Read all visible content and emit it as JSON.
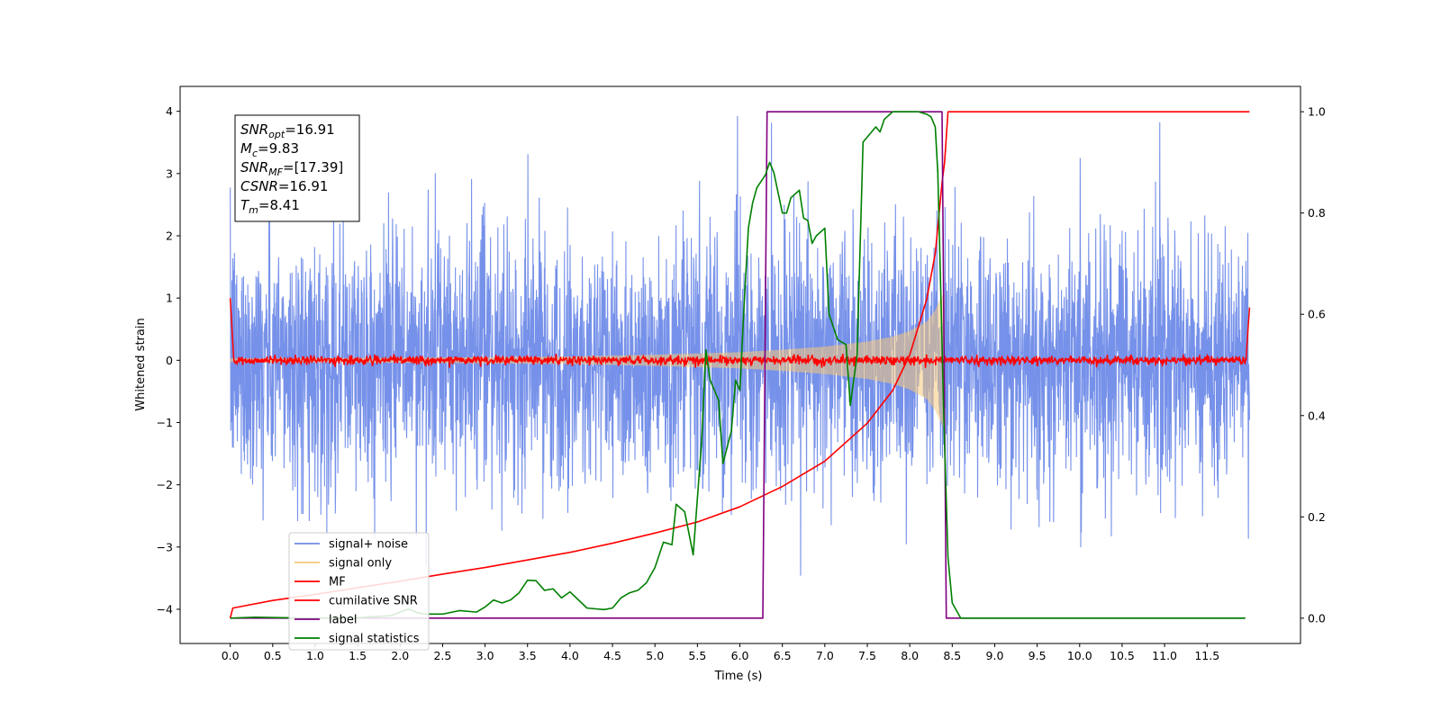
{
  "chart_data": {
    "type": "line",
    "xlabel": "Time (s)",
    "ylabel": "Whitened strain",
    "x_range": [
      0,
      12
    ],
    "xlim": [
      -0.59,
      12.6
    ],
    "ylim": [
      -4.55,
      4.4
    ],
    "y2lim": [
      -0.05,
      1.05
    ],
    "x_ticks": [
      "0.0",
      "0.5",
      "1.0",
      "1.5",
      "2.0",
      "2.5",
      "3.0",
      "3.5",
      "4.0",
      "4.5",
      "5.0",
      "5.5",
      "6.0",
      "6.5",
      "7.0",
      "7.5",
      "8.0",
      "8.5",
      "9.0",
      "9.5",
      "10.0",
      "10.5",
      "11.0",
      "11.5"
    ],
    "y_ticks": [
      "4",
      "3",
      "2",
      "1",
      "0",
      "−1",
      "−2",
      "−3",
      "−4"
    ],
    "y2_ticks": [
      "1.0",
      "0.8",
      "0.6",
      "0.4",
      "0.2",
      "0.0"
    ],
    "annotation": {
      "lines": [
        {
          "base": "SNR",
          "sub": "opt",
          "value": "=16.91"
        },
        {
          "base": "M",
          "sub": "c",
          "value": "=9.83"
        },
        {
          "base": "SNR",
          "sub": "MF",
          "value": "=[17.39]"
        },
        {
          "base": "CSNR",
          "sub": "",
          "value": "=16.91"
        },
        {
          "base": "T",
          "sub": "m",
          "value": "=8.41"
        }
      ]
    },
    "legend": {
      "position": "lower-left",
      "entries": [
        {
          "label": "signal+ noise",
          "color": "#6f8be8"
        },
        {
          "label": "signal only",
          "color": "#f5c87a"
        },
        {
          "label": "MF",
          "color": "#ff0000"
        },
        {
          "label": "cumilative SNR",
          "color": "#ff0000"
        },
        {
          "label": "label",
          "color": "#800080"
        },
        {
          "label": "signal statistics",
          "color": "#008000"
        }
      ]
    },
    "series": [
      {
        "name": "signal+ noise",
        "axis": "left",
        "kind": "noise",
        "sigma": 1.0,
        "x_range": [
          0,
          12
        ]
      },
      {
        "name": "signal only",
        "axis": "left",
        "kind": "chirp",
        "x_range": [
          0,
          8.41
        ],
        "envelope": {
          "x": [
            0,
            2,
            4,
            5,
            6,
            6.5,
            7,
            7.5,
            7.8,
            8.0,
            8.2,
            8.3,
            8.35,
            8.41
          ],
          "amp": [
            0.03,
            0.04,
            0.06,
            0.09,
            0.13,
            0.17,
            0.22,
            0.3,
            0.38,
            0.47,
            0.62,
            0.8,
            0.95,
            1.1
          ]
        }
      },
      {
        "name": "MF",
        "axis": "left",
        "kind": "mf",
        "x_range": [
          0,
          12
        ],
        "noise_sigma": 0.035
      },
      {
        "name": "cumilative SNR",
        "axis": "right",
        "x": [
          0,
          0.03,
          0.5,
          1,
          1.5,
          2,
          2.5,
          3,
          3.5,
          4,
          4.5,
          5,
          5.5,
          6,
          6.5,
          7,
          7.5,
          7.8,
          8.0,
          8.2,
          8.3,
          8.38,
          8.41,
          8.45,
          12.0
        ],
        "y": [
          0.0,
          0.02,
          0.035,
          0.047,
          0.06,
          0.073,
          0.087,
          0.1,
          0.115,
          0.13,
          0.148,
          0.168,
          0.19,
          0.22,
          0.26,
          0.31,
          0.385,
          0.45,
          0.52,
          0.63,
          0.72,
          0.86,
          0.9,
          1.0,
          1.0
        ]
      },
      {
        "name": "label",
        "axis": "right",
        "x": [
          0,
          6.27,
          6.32,
          8.38,
          8.43,
          11.95
        ],
        "y": [
          0,
          0,
          1,
          1,
          0,
          0
        ]
      },
      {
        "name": "signal statistics",
        "axis": "right",
        "x": [
          0.0,
          0.3,
          0.6,
          1.0,
          1.5,
          1.9,
          2.0,
          2.1,
          2.2,
          2.3,
          2.5,
          2.7,
          2.9,
          3.0,
          3.1,
          3.2,
          3.3,
          3.4,
          3.5,
          3.6,
          3.7,
          3.8,
          3.9,
          4.0,
          4.2,
          4.4,
          4.5,
          4.6,
          4.7,
          4.8,
          4.9,
          5.0,
          5.1,
          5.2,
          5.25,
          5.35,
          5.45,
          5.55,
          5.6,
          5.65,
          5.75,
          5.8,
          5.9,
          5.95,
          6.0,
          6.05,
          6.1,
          6.15,
          6.2,
          6.3,
          6.35,
          6.4,
          6.5,
          6.55,
          6.6,
          6.7,
          6.75,
          6.8,
          6.85,
          6.9,
          7.0,
          7.05,
          7.15,
          7.25,
          7.3,
          7.38,
          7.45,
          7.5,
          7.6,
          7.65,
          7.7,
          7.8,
          7.9,
          8.0,
          8.1,
          8.2,
          8.25,
          8.3,
          8.33,
          8.36,
          8.4,
          8.45,
          8.5,
          8.6,
          8.7,
          9.0,
          10.0,
          11.0,
          11.95
        ],
        "y": [
          0.0,
          0.002,
          0.001,
          0.0,
          0.001,
          0.005,
          0.012,
          0.018,
          0.011,
          0.008,
          0.008,
          0.015,
          0.012,
          0.022,
          0.036,
          0.03,
          0.036,
          0.05,
          0.075,
          0.074,
          0.055,
          0.058,
          0.04,
          0.052,
          0.02,
          0.017,
          0.02,
          0.04,
          0.05,
          0.055,
          0.07,
          0.1,
          0.15,
          0.145,
          0.225,
          0.21,
          0.125,
          0.35,
          0.53,
          0.47,
          0.43,
          0.305,
          0.37,
          0.47,
          0.45,
          0.62,
          0.77,
          0.82,
          0.85,
          0.875,
          0.9,
          0.88,
          0.8,
          0.8,
          0.83,
          0.845,
          0.79,
          0.785,
          0.74,
          0.755,
          0.77,
          0.6,
          0.55,
          0.54,
          0.42,
          0.52,
          0.94,
          0.95,
          0.97,
          0.96,
          0.985,
          1.0,
          1.0,
          1.0,
          1.0,
          0.995,
          0.99,
          0.97,
          0.88,
          0.68,
          0.4,
          0.12,
          0.03,
          0.0,
          0.0,
          0.0,
          0.0,
          0.0,
          0.0
        ]
      }
    ]
  }
}
